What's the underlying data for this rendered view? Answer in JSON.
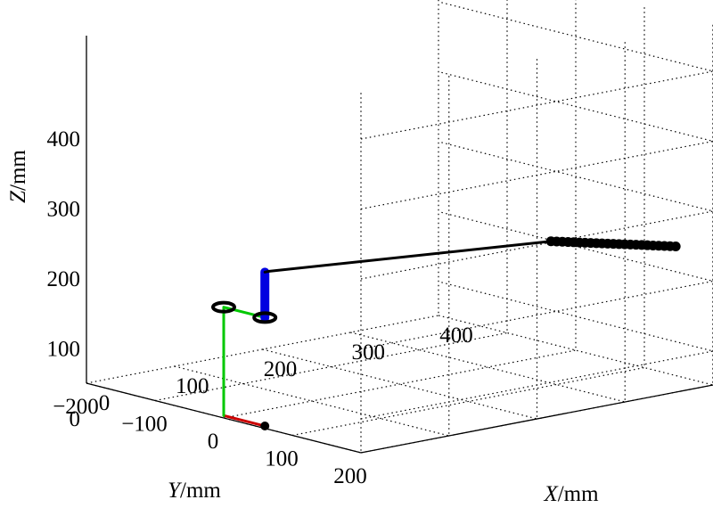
{
  "chart_data": {
    "type": "line",
    "projection": "3d",
    "grid": true,
    "x_axis": {
      "label_var": "X",
      "label_unit": "/mm",
      "ticks": [
        "0",
        "100",
        "200",
        "300",
        "400"
      ],
      "range": [
        0,
        400
      ]
    },
    "y_axis": {
      "label_var": "Y",
      "label_unit": "/mm",
      "ticks": [
        "200",
        "100",
        "0",
        "−100",
        "−200"
      ],
      "range": [
        -200,
        200
      ]
    },
    "z_axis": {
      "label_var": "Z",
      "label_unit": "/mm",
      "ticks": [
        "400",
        "300",
        "200",
        "100",
        "0"
      ],
      "range": [
        0,
        400
      ]
    },
    "series": [
      {
        "color": "#cc0000",
        "marker": "none",
        "points": [
          [
            0,
            0,
            -45
          ],
          [
            0,
            60,
            -45
          ]
        ]
      },
      {
        "color": "#00c800",
        "marker": "none",
        "points": [
          [
            0,
            0,
            -45
          ],
          [
            0,
            0,
            110
          ],
          [
            0,
            60,
            110
          ]
        ]
      },
      {
        "color": "#0000e0",
        "marker": "none",
        "points": [
          [
            0,
            60,
            110
          ],
          [
            0,
            60,
            175
          ]
        ]
      },
      {
        "color": "#000000",
        "marker": "circle",
        "points": [
          [
            0,
            60,
            175
          ],
          [
            5,
            60,
            175
          ],
          [
            290,
            105,
            160
          ],
          [
            420,
            120,
            125
          ]
        ]
      }
    ]
  }
}
